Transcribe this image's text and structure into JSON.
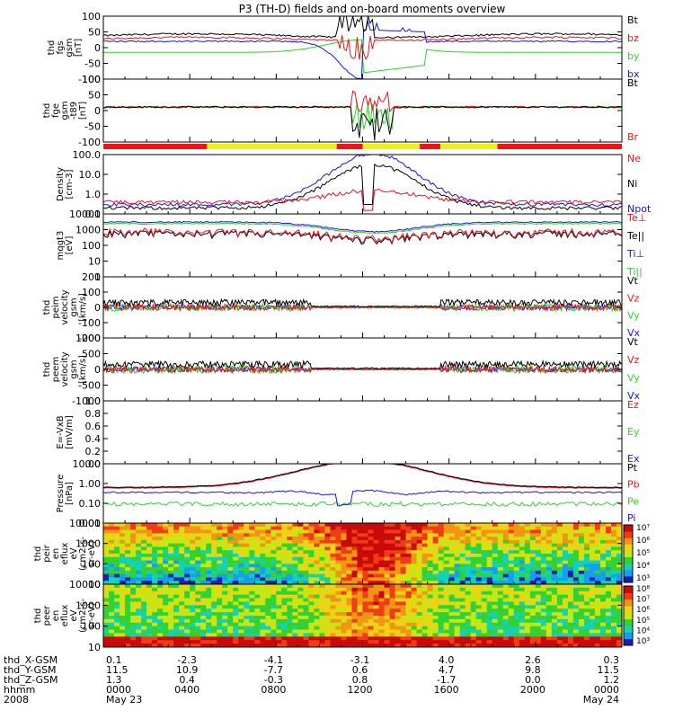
{
  "title": "P3 (TH-D) fields and on-board moments overview",
  "panels": [
    {
      "key": "fgs",
      "ylabel": [
        "thd",
        "fgs",
        "gsm",
        "[nT]"
      ],
      "ticks": [
        "100",
        "50",
        "0",
        "-50",
        "-100"
      ],
      "ymin": -100,
      "ymax": 100,
      "log": false,
      "legend": [
        {
          "text": "Bt",
          "color": "#000000"
        },
        {
          "text": "bz",
          "color": "#e8141e"
        },
        {
          "text": "by",
          "color": "#2dd12d"
        },
        {
          "text": "bx",
          "color": "#1414e6"
        }
      ]
    },
    {
      "key": "fgs2",
      "ylabel": [
        "thd",
        "fge",
        "gsm",
        "-t89",
        "[nT]"
      ],
      "ticks": [
        "100",
        "50",
        "0",
        "-50",
        "-100"
      ],
      "ymin": -125,
      "ymax": 100,
      "log": false,
      "legend": [
        {
          "text": "Bt",
          "color": "#000000"
        },
        {
          "text": "Br",
          "color": "#e8141e"
        }
      ]
    },
    {
      "key": "density",
      "ylabel": [
        "Density",
        "[cm-3]"
      ],
      "ticks": [
        "100.0",
        "10.0",
        "1.0",
        "0.1"
      ],
      "ymin": 0.1,
      "ymax": 100,
      "log": true,
      "legend": [
        {
          "text": "Ne",
          "color": "#e8141e"
        },
        {
          "text": "Ni",
          "color": "#000000"
        },
        {
          "text": "Npot",
          "color": "#1414e6"
        }
      ]
    },
    {
      "key": "temp",
      "ylabel": [
        "mqgt3",
        "[eV]"
      ],
      "ticks": [
        "10000",
        "1000",
        "100",
        "10",
        "1"
      ],
      "ymin": 1,
      "ymax": 10000,
      "log": true,
      "legend": [
        {
          "text": "Te⊥",
          "color": "#e8141e"
        },
        {
          "text": "Te||",
          "color": "#000000"
        },
        {
          "text": "Ti⊥",
          "color": "#1414e6"
        },
        {
          "text": "Ti||",
          "color": "#2dd12d"
        }
      ]
    },
    {
      "key": "vi",
      "ylabel": [
        "thd",
        "peim",
        "velocity",
        "gsm",
        "[km/s]"
      ],
      "ticks": [
        "200",
        "100",
        "0",
        "-100",
        "-200"
      ],
      "ymin": -200,
      "ymax": 200,
      "log": false,
      "legend": [
        {
          "text": "Vt",
          "color": "#000000"
        },
        {
          "text": "Vz",
          "color": "#e8141e"
        },
        {
          "text": "Vy",
          "color": "#2dd12d"
        },
        {
          "text": "Vx",
          "color": "#1414e6"
        }
      ]
    },
    {
      "key": "ve",
      "ylabel": [
        "thd",
        "peem",
        "velocity",
        "gsm",
        "[km/s]"
      ],
      "ticks": [
        "1000",
        "500",
        "0",
        "-500",
        "-1000"
      ],
      "ymin": -1000,
      "ymax": 1000,
      "log": false,
      "legend": [
        {
          "text": "Vt",
          "color": "#000000"
        },
        {
          "text": "Vz",
          "color": "#e8141e"
        },
        {
          "text": "Vy",
          "color": "#2dd12d"
        },
        {
          "text": "Vx",
          "color": "#1414e6"
        }
      ]
    },
    {
      "key": "efield",
      "ylabel": [
        "E=-VxB",
        "[mV/m]"
      ],
      "ticks": [
        "1.0",
        "0.8",
        "0.6",
        "0.4",
        "0.2",
        "0.0"
      ],
      "ymin": 0,
      "ymax": 1,
      "log": false,
      "legend": [
        {
          "text": "Ez",
          "color": "#e8141e"
        },
        {
          "text": "Ey",
          "color": "#2dd12d"
        },
        {
          "text": "Ex",
          "color": "#1414e6"
        }
      ]
    },
    {
      "key": "pressure",
      "ylabel": [
        "Pressure",
        "[nPa]"
      ],
      "ticks": [
        "10.00",
        "1.00",
        "0.10",
        "0.01"
      ],
      "ymin": 0.003,
      "ymax": 10,
      "log": true,
      "legend": [
        {
          "text": "Pt",
          "color": "#000000"
        },
        {
          "text": "Pb",
          "color": "#e8141e"
        },
        {
          "text": "Pe",
          "color": "#2dd12d"
        },
        {
          "text": "Pi",
          "color": "#1414e6"
        }
      ]
    },
    {
      "key": "ion_spec",
      "ylabel": [
        "thd",
        "peir",
        "en",
        "eflux",
        "eV",
        "(cm2-s-",
        "sr-eV)"
      ],
      "ticks": [
        "10000",
        "1000",
        "100",
        "10"
      ],
      "ymin": 5,
      "ymax": 20000,
      "log": true,
      "colorbar": [
        "10⁷",
        "10⁶",
        "10⁵",
        "10⁴",
        "10³"
      ]
    },
    {
      "key": "elec_spec",
      "ylabel": [
        "thd",
        "peer",
        "en",
        "eflux",
        "eV",
        "(cm2-s-",
        "sr-eV)"
      ],
      "ticks": [
        "10000",
        "1000",
        "100",
        "10"
      ],
      "ymin": 5,
      "ymax": 20000,
      "log": true,
      "colorbar": [
        "10⁸",
        "10⁷",
        "10⁶",
        "10⁵",
        "10⁴",
        "10³"
      ]
    }
  ],
  "footer": {
    "rows": [
      {
        "label": "thd_X-GSM",
        "values": [
          "0.1",
          "-2.3",
          "-4.1",
          "-3.1",
          "4.0",
          "2.6",
          "0.3"
        ]
      },
      {
        "label": "thd_Y-GSM",
        "values": [
          "11.5",
          "10.9",
          "-7.7",
          "0.6",
          "4.7",
          "9.8",
          "11.5"
        ]
      },
      {
        "label": "thd_Z-GSM",
        "values": [
          "1.3",
          "0.4",
          "-0.3",
          "0.8",
          "-1.7",
          "0.0",
          "1.2"
        ]
      },
      {
        "label": "hhmm",
        "values": [
          "0000",
          "0400",
          "0800",
          "1200",
          "1600",
          "2000",
          "0000"
        ]
      },
      {
        "label": "2008",
        "values": [
          "May 23",
          "",
          "",
          "",
          "",
          "",
          "May 24"
        ]
      }
    ]
  },
  "chart_data": {
    "type": "line",
    "title": "P3 (TH-D) fields and on-board moments overview",
    "x": [
      "0000",
      "0400",
      "0800",
      "1200",
      "1600",
      "2000",
      "0000"
    ],
    "xlabel": "hhmm",
    "date_labels": [
      "May 23",
      "May 24"
    ],
    "year": "2008",
    "series": [
      {
        "name": "Bt",
        "panel": "fgs",
        "values": [
          40,
          42,
          55,
          95,
          90,
          45,
          40
        ]
      },
      {
        "name": "bz",
        "panel": "fgs",
        "values": [
          30,
          32,
          45,
          60,
          70,
          42,
          35
        ]
      },
      {
        "name": "by",
        "panel": "fgs",
        "values": [
          -15,
          -8,
          10,
          80,
          -60,
          -5,
          -15
        ]
      },
      {
        "name": "bx",
        "panel": "fgs",
        "values": [
          20,
          20,
          -30,
          -100,
          60,
          25,
          20
        ]
      },
      {
        "name": "Ni",
        "panel": "density",
        "values": [
          0.2,
          0.3,
          2,
          20,
          10,
          0.3,
          0.2
        ]
      },
      {
        "name": "Ne",
        "panel": "density",
        "values": [
          0.3,
          0.3,
          0.5,
          1,
          0.5,
          0.4,
          0.3
        ]
      },
      {
        "name": "Pt",
        "panel": "pressure",
        "values": [
          0.5,
          0.8,
          3,
          10,
          4,
          0.6,
          0.4
        ]
      },
      {
        "name": "Pe",
        "panel": "pressure",
        "values": [
          0.03,
          0.02,
          0.05,
          0.06,
          0.05,
          0.02,
          0.03
        ]
      },
      {
        "name": "Pi",
        "panel": "pressure",
        "values": [
          0.2,
          0.3,
          0.2,
          0.3,
          0.1,
          0.15,
          0.2
        ]
      }
    ]
  }
}
